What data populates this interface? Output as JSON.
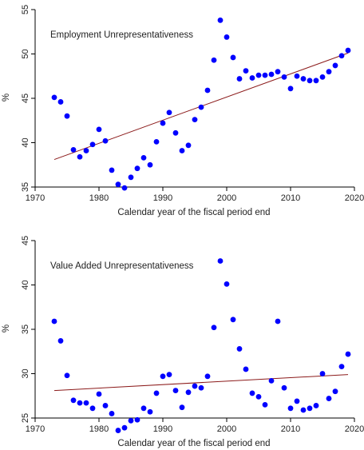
{
  "chart_data": [
    {
      "type": "scatter",
      "annotation": "Employment Unrepresentativeness",
      "xlabel": "Calendar year of the fiscal period end",
      "ylabel": "%",
      "xlim": [
        1970,
        2020
      ],
      "ylim": [
        35,
        55
      ],
      "xticks": [
        1970,
        1980,
        1990,
        2000,
        2010,
        2020
      ],
      "yticks": [
        35,
        40,
        45,
        50,
        55
      ],
      "point_color": "#0000ff",
      "fit_color": "#8b1a1a",
      "grid": false,
      "points": [
        [
          1973,
          45.1
        ],
        [
          1974,
          44.6
        ],
        [
          1975,
          43.0
        ],
        [
          1976,
          39.2
        ],
        [
          1977,
          38.4
        ],
        [
          1978,
          39.1
        ],
        [
          1979,
          39.8
        ],
        [
          1980,
          41.5
        ],
        [
          1981,
          40.2
        ],
        [
          1982,
          36.9
        ],
        [
          1983,
          35.3
        ],
        [
          1984,
          34.9
        ],
        [
          1985,
          36.1
        ],
        [
          1986,
          37.1
        ],
        [
          1987,
          38.3
        ],
        [
          1988,
          37.5
        ],
        [
          1989,
          40.1
        ],
        [
          1990,
          42.2
        ],
        [
          1991,
          43.4
        ],
        [
          1992,
          41.1
        ],
        [
          1993,
          39.1
        ],
        [
          1994,
          39.7
        ],
        [
          1995,
          42.6
        ],
        [
          1996,
          44.0
        ],
        [
          1997,
          45.9
        ],
        [
          1998,
          49.3
        ],
        [
          1999,
          53.8
        ],
        [
          2000,
          51.9
        ],
        [
          2001,
          49.6
        ],
        [
          2002,
          47.2
        ],
        [
          2003,
          48.1
        ],
        [
          2004,
          47.3
        ],
        [
          2005,
          47.6
        ],
        [
          2006,
          47.6
        ],
        [
          2007,
          47.7
        ],
        [
          2008,
          48.0
        ],
        [
          2009,
          47.4
        ],
        [
          2010,
          46.1
        ],
        [
          2011,
          47.5
        ],
        [
          2012,
          47.2
        ],
        [
          2013,
          47.0
        ],
        [
          2014,
          47.0
        ],
        [
          2015,
          47.4
        ],
        [
          2016,
          48.0
        ],
        [
          2017,
          48.7
        ],
        [
          2018,
          49.8
        ],
        [
          2019,
          50.4
        ]
      ],
      "fit_line": [
        [
          1973,
          38.1
        ],
        [
          2019,
          50.1
        ]
      ]
    },
    {
      "type": "scatter",
      "annotation": "Value Added Unrepresentativeness",
      "xlabel": "Calendar year of the fiscal period end",
      "ylabel": "%",
      "xlim": [
        1970,
        2020
      ],
      "ylim": [
        25,
        45
      ],
      "xticks": [
        1970,
        1980,
        1990,
        2000,
        2010,
        2020
      ],
      "yticks": [
        25,
        30,
        35,
        40,
        45
      ],
      "point_color": "#0000ff",
      "fit_color": "#8b1a1a",
      "grid": false,
      "points": [
        [
          1973,
          35.9
        ],
        [
          1974,
          33.7
        ],
        [
          1975,
          29.8
        ],
        [
          1976,
          27.0
        ],
        [
          1977,
          26.7
        ],
        [
          1978,
          26.7
        ],
        [
          1979,
          26.1
        ],
        [
          1980,
          27.7
        ],
        [
          1981,
          26.4
        ],
        [
          1982,
          25.5
        ],
        [
          1983,
          23.6
        ],
        [
          1984,
          23.9
        ],
        [
          1985,
          24.7
        ],
        [
          1986,
          24.8
        ],
        [
          1987,
          26.1
        ],
        [
          1988,
          25.7
        ],
        [
          1989,
          27.8
        ],
        [
          1990,
          29.7
        ],
        [
          1991,
          29.9
        ],
        [
          1992,
          28.1
        ],
        [
          1993,
          26.2
        ],
        [
          1994,
          27.9
        ],
        [
          1995,
          28.6
        ],
        [
          1996,
          28.4
        ],
        [
          1997,
          29.7
        ],
        [
          1998,
          35.2
        ],
        [
          1999,
          42.7
        ],
        [
          2000,
          40.1
        ],
        [
          2001,
          36.1
        ],
        [
          2002,
          32.8
        ],
        [
          2003,
          30.5
        ],
        [
          2004,
          27.8
        ],
        [
          2005,
          27.4
        ],
        [
          2006,
          26.5
        ],
        [
          2007,
          29.2
        ],
        [
          2008,
          35.9
        ],
        [
          2009,
          28.4
        ],
        [
          2010,
          26.1
        ],
        [
          2011,
          26.9
        ],
        [
          2012,
          25.9
        ],
        [
          2013,
          26.1
        ],
        [
          2014,
          26.4
        ],
        [
          2015,
          30.0
        ],
        [
          2016,
          27.2
        ],
        [
          2017,
          28.0
        ],
        [
          2018,
          30.8
        ],
        [
          2019,
          32.2
        ]
      ],
      "fit_line": [
        [
          1973,
          28.1
        ],
        [
          2019,
          29.9
        ]
      ]
    }
  ]
}
